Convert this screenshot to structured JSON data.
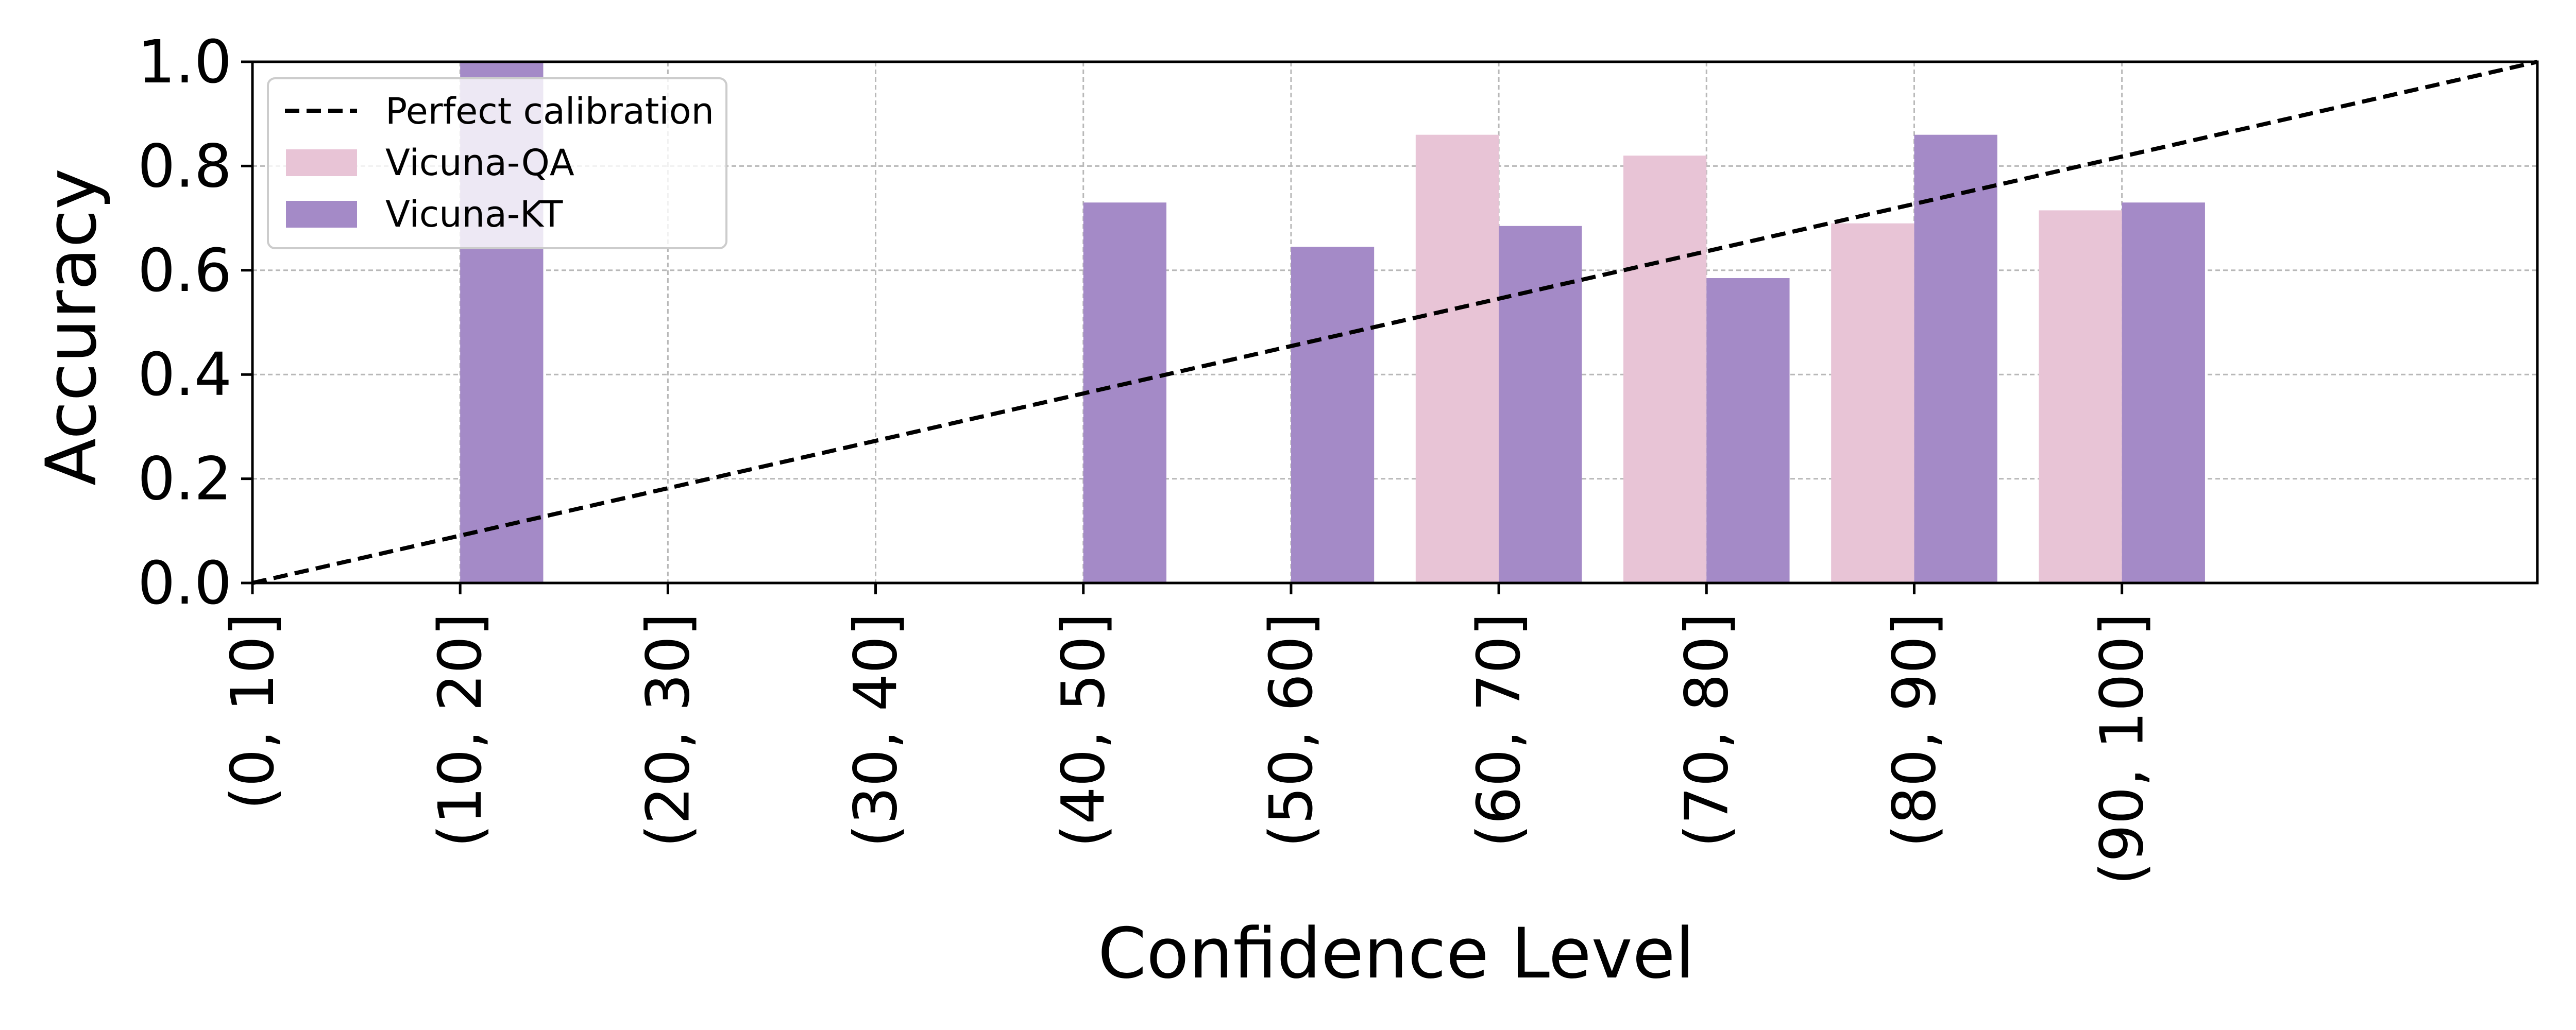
{
  "chart_data": {
    "type": "bar",
    "xlabel": "Confidence Level",
    "ylabel": "Accuracy",
    "categories": [
      "(0, 10]",
      "(10, 20]",
      "(20, 30]",
      "(30, 40]",
      "(40, 50]",
      "(50, 60]",
      "(60, 70]",
      "(70, 80]",
      "(80, 90]",
      "(90, 100]"
    ],
    "series": [
      {
        "name": "Vicuna-QA",
        "color": "#e8c4d6",
        "values": [
          null,
          null,
          null,
          null,
          null,
          null,
          0.86,
          0.82,
          0.69,
          0.715
        ]
      },
      {
        "name": "Vicuna-KT",
        "color": "#a48ac7",
        "values": [
          null,
          1.0,
          null,
          null,
          0.73,
          0.645,
          0.685,
          0.585,
          0.86,
          0.73
        ]
      }
    ],
    "reference_line": {
      "name": "Perfect calibration",
      "style": "dashed",
      "color": "#000000",
      "from": [
        0,
        0.0
      ],
      "to": [
        100,
        1.0
      ]
    },
    "x_range": [
      0,
      100
    ],
    "ylim": [
      0.0,
      1.0
    ],
    "y_ticks": [
      "0.0",
      "0.2",
      "0.4",
      "0.6",
      "0.8",
      "1.0"
    ],
    "grid": true,
    "legend_position": "top-left"
  }
}
